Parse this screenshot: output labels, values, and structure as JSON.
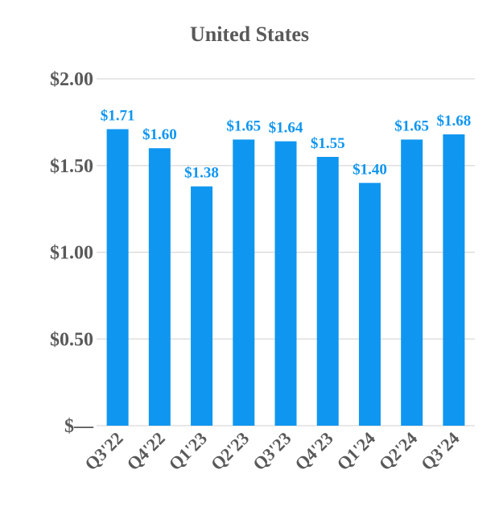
{
  "chart_data": {
    "type": "bar",
    "title": "United States",
    "categories": [
      "Q3'22",
      "Q4'22",
      "Q1'23",
      "Q2'23",
      "Q3'23",
      "Q4'23",
      "Q1'24",
      "Q2'24",
      "Q3'24"
    ],
    "values": [
      1.71,
      1.6,
      1.38,
      1.65,
      1.64,
      1.55,
      1.4,
      1.65,
      1.68
    ],
    "data_labels": [
      "$1.71",
      "$1.60",
      "$1.38",
      "$1.65",
      "$1.64",
      "$1.55",
      "$1.40",
      "$1.65",
      "$1.68"
    ],
    "y_ticks": [
      0,
      0.5,
      1.0,
      1.5,
      2.0
    ],
    "y_tick_labels": [
      "$—",
      "$0.50",
      "$1.00",
      "$1.50",
      "$2.00"
    ],
    "ylim": [
      0,
      2.0
    ],
    "xlabel": "",
    "ylabel": "",
    "grid": true,
    "legend": "none",
    "bar_color": "#0F96F0",
    "label_color": "#0F96F0",
    "tick_color": "#595959",
    "grid_color": "#D9D9D9"
  }
}
